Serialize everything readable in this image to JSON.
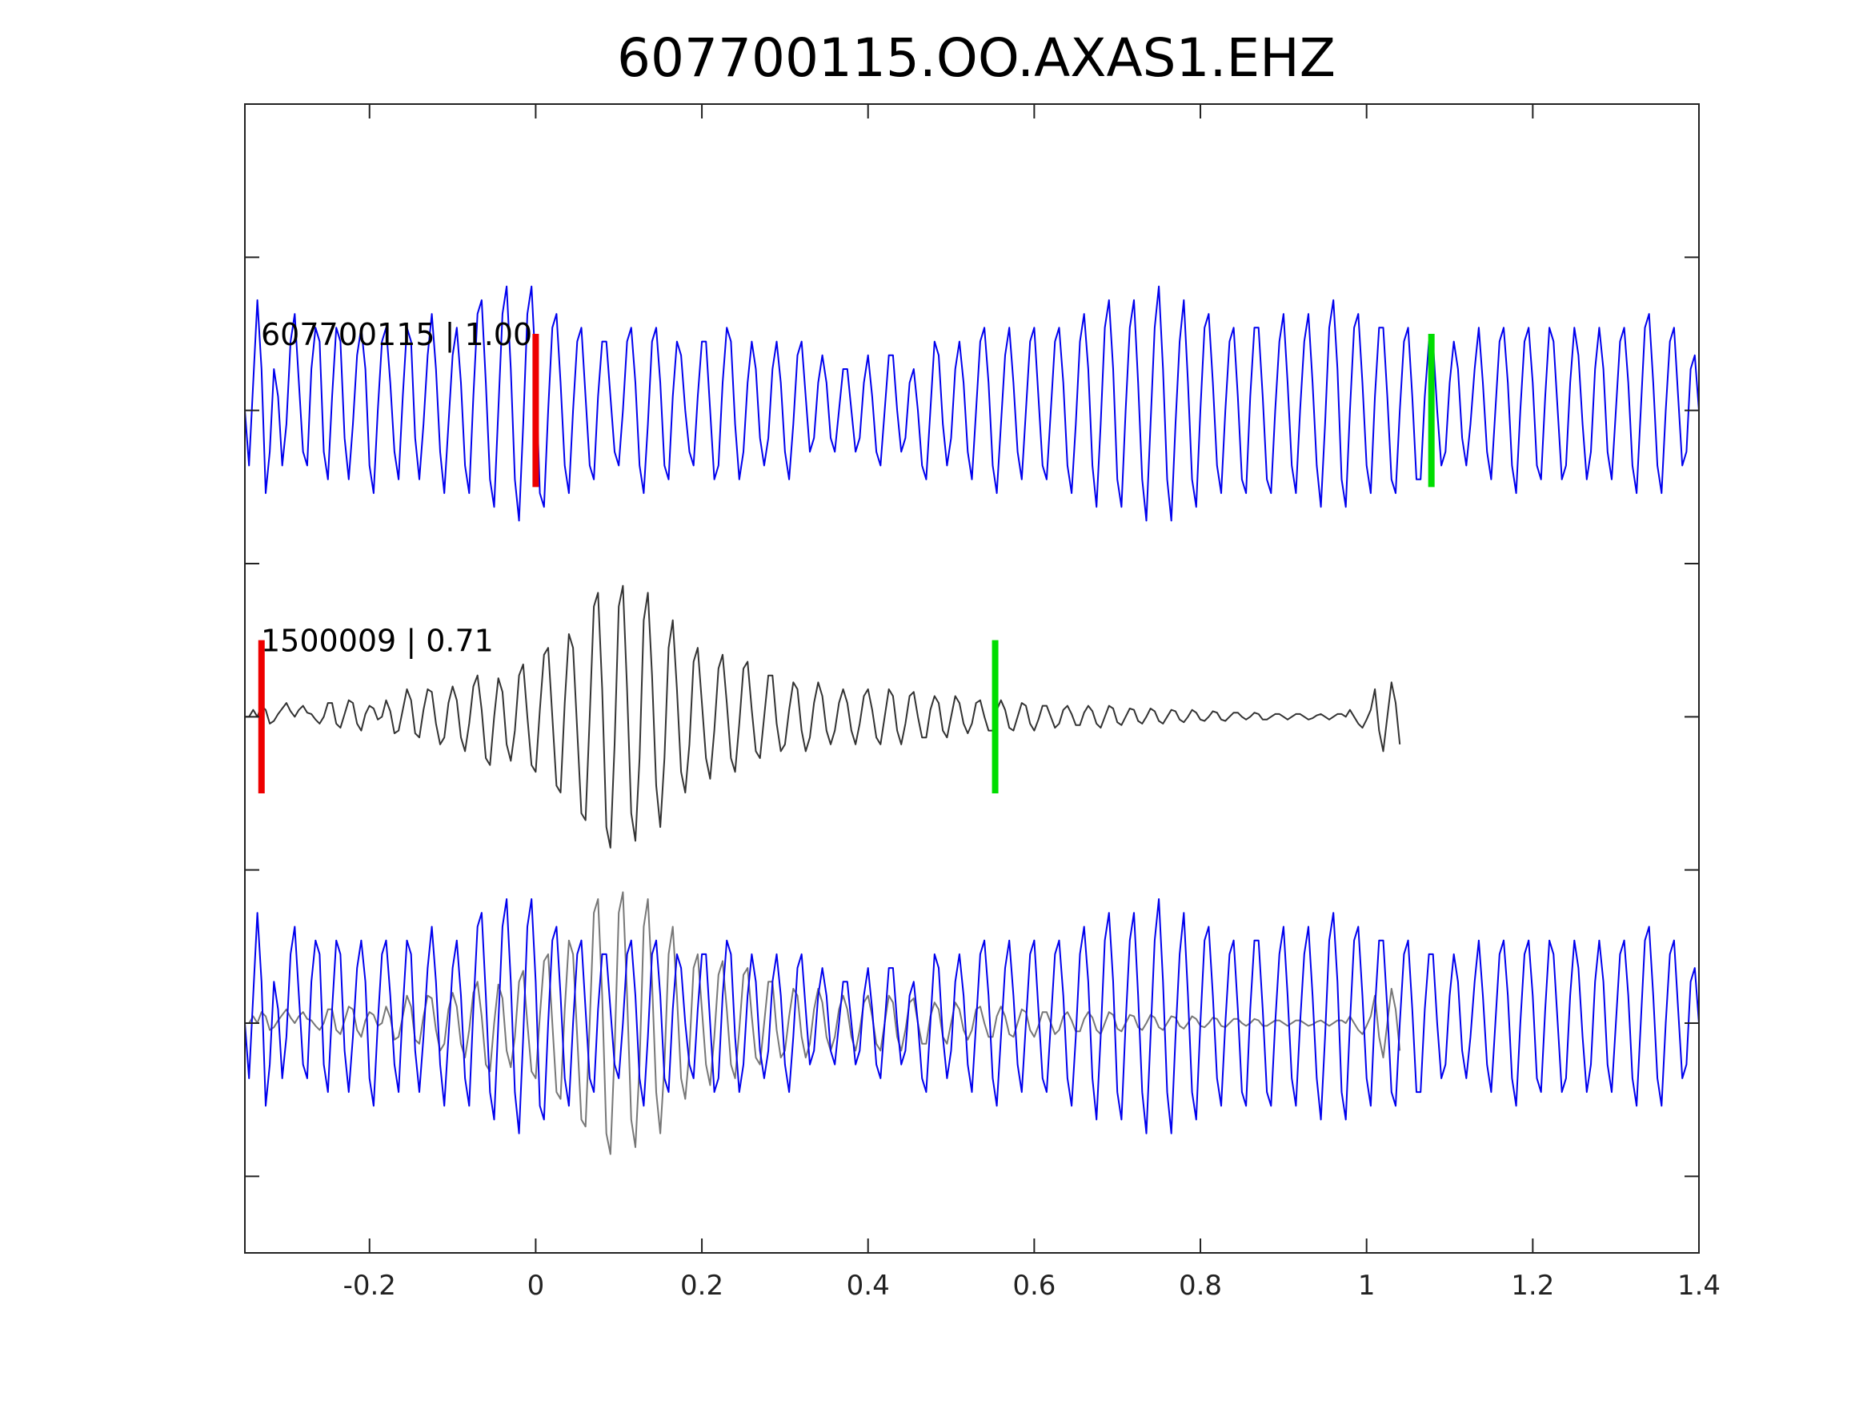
{
  "chart_data": {
    "type": "line",
    "title": "607700115.OO.AXAS1.EHZ",
    "xlabel": "",
    "ylabel": "",
    "xlim": [
      -0.35,
      1.4
    ],
    "ylim": [
      0,
      7.5
    ],
    "xticks": [
      -0.2,
      0,
      0.2,
      0.4,
      0.6,
      0.8,
      1,
      1.2,
      1.4
    ],
    "xtick_labels": [
      "-0.2",
      "0",
      "0.2",
      "0.4",
      "0.6",
      "0.8",
      "1",
      "1.2",
      "1.4"
    ],
    "yticks": [
      0.5,
      1.5,
      2.5,
      3.5,
      4.5,
      5.5,
      6.5
    ],
    "grid": false,
    "sample_interval_s": 0.005,
    "traces": [
      {
        "name": "607700115",
        "label": "607700115 | 1.00",
        "color": "#0000ee",
        "baseline": 5.5,
        "amplitude": 0.9,
        "t_start": -0.35,
        "dt": 0.005,
        "values": [
          0.0,
          -0.4,
          0.2,
          0.8,
          0.3,
          -0.6,
          -0.3,
          0.3,
          0.1,
          -0.4,
          -0.1,
          0.5,
          0.7,
          0.2,
          -0.3,
          -0.4,
          0.3,
          0.6,
          0.5,
          -0.3,
          -0.5,
          0.1,
          0.6,
          0.5,
          -0.2,
          -0.5,
          -0.1,
          0.4,
          0.6,
          0.3,
          -0.4,
          -0.6,
          0.0,
          0.5,
          0.6,
          0.2,
          -0.3,
          -0.5,
          0.1,
          0.6,
          0.5,
          -0.2,
          -0.5,
          -0.1,
          0.4,
          0.7,
          0.3,
          -0.3,
          -0.6,
          -0.1,
          0.4,
          0.6,
          0.2,
          -0.4,
          -0.6,
          0.1,
          0.7,
          0.8,
          0.2,
          -0.5,
          -0.7,
          0.0,
          0.7,
          0.9,
          0.3,
          -0.5,
          -0.8,
          -0.1,
          0.7,
          0.9,
          0.3,
          -0.6,
          -0.7,
          0.0,
          0.6,
          0.7,
          0.2,
          -0.4,
          -0.6,
          0.0,
          0.5,
          0.6,
          0.1,
          -0.4,
          -0.5,
          0.1,
          0.5,
          0.5,
          0.1,
          -0.3,
          -0.4,
          0.0,
          0.5,
          0.6,
          0.2,
          -0.4,
          -0.6,
          -0.1,
          0.5,
          0.6,
          0.2,
          -0.4,
          -0.5,
          0.1,
          0.5,
          0.4,
          0.0,
          -0.3,
          -0.4,
          0.1,
          0.5,
          0.5,
          0.0,
          -0.5,
          -0.4,
          0.2,
          0.6,
          0.5,
          -0.1,
          -0.5,
          -0.3,
          0.2,
          0.5,
          0.3,
          -0.2,
          -0.4,
          -0.2,
          0.3,
          0.5,
          0.2,
          -0.3,
          -0.5,
          -0.1,
          0.4,
          0.5,
          0.1,
          -0.3,
          -0.2,
          0.2,
          0.4,
          0.2,
          -0.2,
          -0.3,
          0.0,
          0.3,
          0.3,
          0.0,
          -0.3,
          -0.2,
          0.2,
          0.4,
          0.1,
          -0.3,
          -0.4,
          0.0,
          0.4,
          0.4,
          0.0,
          -0.3,
          -0.2,
          0.2,
          0.3,
          0.0,
          -0.4,
          -0.5,
          0.0,
          0.5,
          0.4,
          -0.1,
          -0.4,
          -0.2,
          0.3,
          0.5,
          0.2,
          -0.3,
          -0.5,
          0.0,
          0.5,
          0.6,
          0.2,
          -0.4,
          -0.6,
          -0.1,
          0.4,
          0.6,
          0.2,
          -0.3,
          -0.5,
          0.0,
          0.5,
          0.6,
          0.1,
          -0.4,
          -0.5,
          0.0,
          0.5,
          0.6,
          0.2,
          -0.4,
          -0.6,
          -0.1,
          0.5,
          0.7,
          0.3,
          -0.4,
          -0.7,
          -0.1,
          0.6,
          0.8,
          0.3,
          -0.5,
          -0.7,
          0.0,
          0.6,
          0.8,
          0.2,
          -0.5,
          -0.8,
          -0.1,
          0.6,
          0.9,
          0.3,
          -0.5,
          -0.8,
          -0.1,
          0.5,
          0.8,
          0.2,
          -0.5,
          -0.7,
          0.0,
          0.6,
          0.7,
          0.2,
          -0.4,
          -0.6,
          0.0,
          0.5,
          0.6,
          0.1,
          -0.5,
          -0.6,
          0.1,
          0.6,
          0.6,
          0.1,
          -0.5,
          -0.6,
          0.0,
          0.5,
          0.7,
          0.2,
          -0.4,
          -0.6,
          0.0,
          0.5,
          0.7,
          0.2,
          -0.4,
          -0.7,
          -0.1,
          0.6,
          0.8,
          0.3,
          -0.5,
          -0.7,
          0.0,
          0.6,
          0.7,
          0.2,
          -0.4,
          -0.6,
          0.1,
          0.6,
          0.6,
          0.1,
          -0.5,
          -0.6,
          0.0,
          0.5,
          0.6,
          0.1,
          -0.5,
          -0.5,
          0.1,
          0.5,
          0.5,
          0.0,
          -0.4,
          -0.3,
          0.2,
          0.5,
          0.3,
          -0.2,
          -0.4,
          -0.1,
          0.3,
          0.6,
          0.2,
          -0.3,
          -0.5,
          0.0,
          0.5,
          0.6,
          0.2,
          -0.4,
          -0.6,
          0.0,
          0.5,
          0.6,
          0.2,
          -0.4,
          -0.5,
          0.1,
          0.6,
          0.5,
          0.0,
          -0.5,
          -0.4,
          0.2,
          0.6,
          0.4,
          -0.1,
          -0.5,
          -0.3,
          0.3,
          0.6,
          0.3,
          -0.3,
          -0.5,
          0.0,
          0.5,
          0.6,
          0.2,
          -0.4,
          -0.6,
          0.0,
          0.6,
          0.7,
          0.2,
          -0.4,
          -0.6,
          0.0,
          0.5,
          0.6,
          0.1,
          -0.4,
          -0.3,
          0.3,
          0.4,
          0.0
        ]
      },
      {
        "name": "1500009",
        "label": "1500009 | 0.71",
        "color": "#333333",
        "baseline": 3.5,
        "amplitude": 0.9,
        "t_start": -0.35,
        "dt": 0.005,
        "values": [
          0.0,
          0.0,
          0.05,
          0.0,
          0.08,
          0.05,
          -0.05,
          -0.03,
          0.02,
          0.06,
          0.1,
          0.04,
          0.0,
          0.05,
          0.08,
          0.03,
          0.02,
          -0.02,
          -0.05,
          0.0,
          0.1,
          0.1,
          -0.05,
          -0.08,
          0.02,
          0.12,
          0.1,
          -0.05,
          -0.1,
          0.02,
          0.08,
          0.06,
          -0.02,
          0.0,
          0.12,
          0.04,
          -0.12,
          -0.1,
          0.05,
          0.2,
          0.12,
          -0.12,
          -0.15,
          0.05,
          0.2,
          0.18,
          -0.05,
          -0.2,
          -0.15,
          0.1,
          0.22,
          0.12,
          -0.15,
          -0.25,
          -0.05,
          0.22,
          0.3,
          0.05,
          -0.3,
          -0.35,
          0.0,
          0.28,
          0.18,
          -0.2,
          -0.32,
          -0.1,
          0.3,
          0.38,
          0.0,
          -0.35,
          -0.4,
          0.05,
          0.45,
          0.5,
          0.0,
          -0.5,
          -0.55,
          0.1,
          0.6,
          0.5,
          -0.1,
          -0.7,
          -0.75,
          0.0,
          0.8,
          0.9,
          0.2,
          -0.8,
          -0.95,
          -0.2,
          0.8,
          0.95,
          0.2,
          -0.7,
          -0.9,
          -0.3,
          0.7,
          0.9,
          0.3,
          -0.5,
          -0.8,
          -0.3,
          0.5,
          0.7,
          0.2,
          -0.4,
          -0.55,
          -0.2,
          0.4,
          0.5,
          0.1,
          -0.3,
          -0.45,
          -0.1,
          0.35,
          0.45,
          0.1,
          -0.3,
          -0.4,
          -0.05,
          0.35,
          0.4,
          0.05,
          -0.25,
          -0.3,
          0.0,
          0.3,
          0.3,
          -0.05,
          -0.25,
          -0.2,
          0.05,
          0.25,
          0.2,
          -0.1,
          -0.25,
          -0.15,
          0.1,
          0.25,
          0.15,
          -0.1,
          -0.2,
          -0.1,
          0.1,
          0.2,
          0.1,
          -0.1,
          -0.2,
          -0.05,
          0.15,
          0.2,
          0.05,
          -0.15,
          -0.2,
          0.0,
          0.2,
          0.15,
          -0.1,
          -0.2,
          -0.05,
          0.15,
          0.18,
          0.0,
          -0.15,
          -0.15,
          0.05,
          0.15,
          0.1,
          -0.1,
          -0.15,
          0.0,
          0.15,
          0.1,
          -0.05,
          -0.12,
          -0.05,
          0.1,
          0.12,
          0.0,
          -0.1,
          -0.1,
          0.05,
          0.12,
          0.05,
          -0.08,
          -0.1,
          0.0,
          0.1,
          0.08,
          -0.05,
          -0.1,
          -0.02,
          0.08,
          0.08,
          0.0,
          -0.08,
          -0.05,
          0.05,
          0.08,
          0.02,
          -0.06,
          -0.06,
          0.03,
          0.08,
          0.04,
          -0.05,
          -0.08,
          0.0,
          0.08,
          0.06,
          -0.04,
          -0.06,
          0.0,
          0.06,
          0.05,
          -0.03,
          -0.05,
          0.0,
          0.06,
          0.04,
          -0.03,
          -0.05,
          0.0,
          0.05,
          0.04,
          -0.02,
          -0.04,
          0.0,
          0.05,
          0.03,
          -0.02,
          -0.03,
          0.0,
          0.04,
          0.03,
          -0.02,
          -0.03,
          0.0,
          0.03,
          0.03,
          0.0,
          -0.02,
          0.0,
          0.03,
          0.02,
          -0.02,
          -0.02,
          0.0,
          0.02,
          0.02,
          0.0,
          -0.02,
          0.0,
          0.02,
          0.02,
          0.0,
          -0.02,
          -0.01,
          0.01,
          0.02,
          0.0,
          -0.02,
          0.0,
          0.02,
          0.02,
          0.0,
          0.05,
          0.0,
          -0.05,
          -0.08,
          -0.02,
          0.05,
          0.2,
          -0.1,
          -0.25,
          0.0,
          0.25,
          0.1,
          -0.2
        ]
      }
    ],
    "overlay": {
      "baseline": 1.5,
      "traces": [
        "607700115",
        "1500009"
      ],
      "colors": [
        "#0000ee",
        "#777777"
      ]
    },
    "markers": [
      {
        "trace": "607700115",
        "color": "#ee0000",
        "x": 0.0,
        "baseline": 5.5
      },
      {
        "trace": "607700115",
        "color": "#00dd00",
        "x": 1.078,
        "baseline": 5.5
      },
      {
        "trace": "1500009",
        "color": "#ee0000",
        "x": -0.33,
        "baseline": 3.5
      },
      {
        "trace": "1500009",
        "color": "#00dd00",
        "x": 0.553,
        "baseline": 3.5
      }
    ]
  }
}
